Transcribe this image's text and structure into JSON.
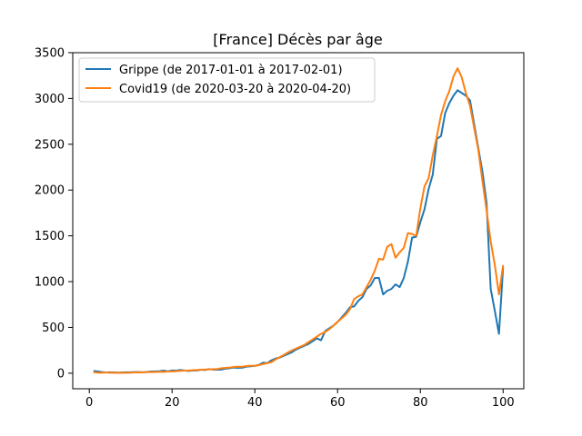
{
  "chart_data": {
    "type": "line",
    "title": "[France] Décès par âge",
    "xlabel": "",
    "ylabel": "",
    "xlim": [
      -4,
      105
    ],
    "ylim": [
      -170,
      3500
    ],
    "x_ticks": [
      0,
      20,
      40,
      60,
      80,
      100
    ],
    "y_ticks": [
      0,
      500,
      1000,
      1500,
      2000,
      2500,
      3000,
      3500
    ],
    "grid": false,
    "legend_position": "top-left",
    "series": [
      {
        "name": "Grippe (de 2017-01-01 à 2017-02-01)",
        "color": "#1f77b4",
        "x": [
          1,
          2,
          3,
          4,
          5,
          6,
          7,
          8,
          9,
          10,
          11,
          12,
          13,
          14,
          15,
          16,
          17,
          18,
          19,
          20,
          21,
          22,
          23,
          24,
          25,
          26,
          27,
          28,
          29,
          30,
          31,
          32,
          33,
          34,
          35,
          36,
          37,
          38,
          39,
          40,
          41,
          42,
          43,
          44,
          45,
          46,
          47,
          48,
          49,
          50,
          51,
          52,
          53,
          54,
          55,
          56,
          57,
          58,
          59,
          60,
          61,
          62,
          63,
          64,
          65,
          66,
          67,
          68,
          69,
          70,
          71,
          72,
          73,
          74,
          75,
          76,
          77,
          78,
          79,
          80,
          81,
          82,
          83,
          84,
          85,
          86,
          87,
          88,
          89,
          90,
          91,
          92,
          93,
          94,
          95,
          96,
          97,
          98,
          99,
          100
        ],
        "values": [
          25,
          20,
          12,
          8,
          10,
          8,
          6,
          8,
          10,
          10,
          12,
          12,
          10,
          15,
          18,
          20,
          22,
          28,
          20,
          30,
          28,
          35,
          30,
          25,
          30,
          30,
          38,
          35,
          45,
          40,
          38,
          40,
          50,
          55,
          62,
          58,
          60,
          72,
          75,
          80,
          90,
          115,
          110,
          140,
          160,
          170,
          190,
          210,
          230,
          260,
          280,
          300,
          320,
          350,
          380,
          360,
          460,
          490,
          520,
          560,
          610,
          660,
          720,
          730,
          790,
          830,
          920,
          960,
          1040,
          1040,
          860,
          900,
          920,
          970,
          940,
          1040,
          1220,
          1480,
          1490,
          1650,
          1790,
          2010,
          2170,
          2560,
          2590,
          2840,
          2950,
          3030,
          3090,
          3060,
          3030,
          2980,
          2720,
          2460,
          2200,
          1860,
          920,
          680,
          430,
          1160
        ]
      },
      {
        "name": "Covid19 (de 2020-03-20 à 2020-04-20)",
        "color": "#ff7f0e",
        "x": [
          1,
          2,
          3,
          4,
          5,
          6,
          7,
          8,
          9,
          10,
          11,
          12,
          13,
          14,
          15,
          16,
          17,
          18,
          19,
          20,
          21,
          22,
          23,
          24,
          25,
          26,
          27,
          28,
          29,
          30,
          31,
          32,
          33,
          34,
          35,
          36,
          37,
          38,
          39,
          40,
          41,
          42,
          43,
          44,
          45,
          46,
          47,
          48,
          49,
          50,
          51,
          52,
          53,
          54,
          55,
          56,
          57,
          58,
          59,
          60,
          61,
          62,
          63,
          64,
          65,
          66,
          67,
          68,
          69,
          70,
          71,
          72,
          73,
          74,
          75,
          76,
          77,
          78,
          79,
          80,
          81,
          82,
          83,
          84,
          85,
          86,
          87,
          88,
          89,
          90,
          91,
          92,
          93,
          94,
          95,
          96,
          97,
          98,
          99,
          100
        ],
        "values": [
          12,
          6,
          5,
          8,
          5,
          6,
          4,
          5,
          5,
          6,
          8,
          10,
          8,
          12,
          12,
          14,
          16,
          15,
          18,
          20,
          22,
          26,
          28,
          30,
          32,
          35,
          38,
          40,
          42,
          44,
          46,
          55,
          58,
          62,
          68,
          70,
          72,
          78,
          80,
          82,
          88,
          100,
          110,
          120,
          150,
          175,
          200,
          225,
          250,
          270,
          290,
          310,
          340,
          370,
          400,
          430,
          450,
          480,
          520,
          560,
          600,
          640,
          700,
          810,
          840,
          860,
          940,
          1020,
          1120,
          1250,
          1240,
          1380,
          1410,
          1260,
          1320,
          1370,
          1530,
          1520,
          1500,
          1800,
          2040,
          2130,
          2380,
          2590,
          2820,
          2970,
          3080,
          3240,
          3330,
          3230,
          3060,
          2920,
          2680,
          2440,
          2100,
          1780,
          1440,
          1180,
          860,
          1180
        ]
      }
    ]
  }
}
